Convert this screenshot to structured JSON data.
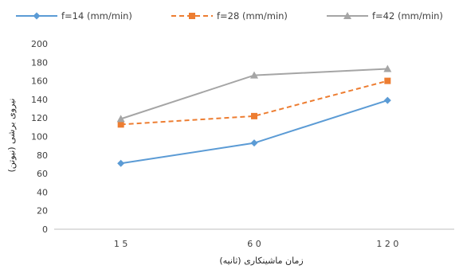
{
  "chart_data": {
    "type": "line",
    "categories": [
      "15",
      "60",
      "120"
    ],
    "ylim": [
      0,
      200
    ],
    "ytick_step": 20,
    "grid": false,
    "legend_position": "top",
    "xlabel": "زمان ماشینکاری (ثانیه)",
    "ylabel": "نیروی برشی (نیوتن)",
    "series": [
      {
        "name": "f=14 (mm/min)",
        "values": [
          71,
          93,
          139
        ],
        "color": "#5B9BD5",
        "marker": "diamond",
        "dash": "solid"
      },
      {
        "name": "f=28 (mm/min)",
        "values": [
          113,
          122,
          160
        ],
        "color": "#ED7D31",
        "marker": "square",
        "dash": "dashed"
      },
      {
        "name": "f=42 (mm/min)",
        "values": [
          119,
          166,
          173
        ],
        "color": "#A5A5A5",
        "marker": "triangle",
        "dash": "solid"
      }
    ]
  }
}
